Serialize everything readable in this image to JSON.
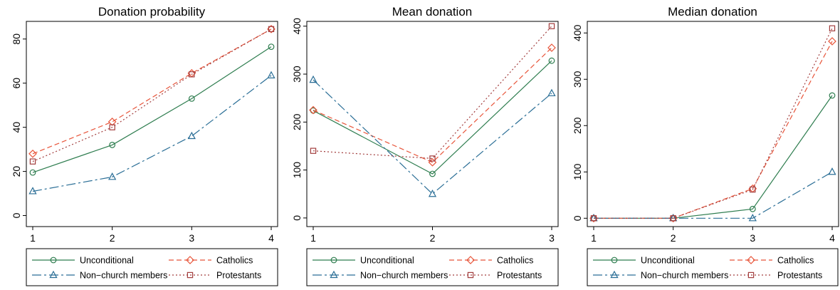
{
  "colors": {
    "unconditional": "#2E7D4F",
    "catholics": "#E8553A",
    "non_church": "#2A6E96",
    "protestants": "#A23D3D"
  },
  "legend_labels": {
    "unconditional": "Unconditional",
    "catholics": "Catholics",
    "non_church": "Non−church members",
    "protestants": "Protestants"
  },
  "chart_data": [
    {
      "type": "line",
      "title": "Donation probability",
      "x": [
        1,
        2,
        3,
        4
      ],
      "xticks": [
        "1",
        "2",
        "3",
        "4"
      ],
      "ylim": [
        -5,
        88
      ],
      "yticks": [
        0,
        20,
        40,
        60,
        80
      ],
      "legend_position": "bottom",
      "series": [
        {
          "key": "unconditional",
          "name": "Unconditional",
          "marker": "circle",
          "dash": "solid",
          "values": [
            19.5,
            32,
            53,
            76.5
          ]
        },
        {
          "key": "catholics",
          "name": "Catholics",
          "marker": "diamond",
          "dash": "dashed",
          "values": [
            28,
            42.5,
            64.5,
            84.5
          ]
        },
        {
          "key": "non_church",
          "name": "Non−church members",
          "marker": "triangle",
          "dash": "longdash",
          "values": [
            11,
            17.5,
            36,
            63.5
          ]
        },
        {
          "key": "protestants",
          "name": "Protestants",
          "marker": "square",
          "dash": "dotted",
          "values": [
            24.5,
            40,
            64,
            84.5
          ]
        }
      ]
    },
    {
      "type": "line",
      "title": "Mean donation",
      "x": [
        1,
        2,
        3
      ],
      "xticks": [
        "1",
        "2",
        "3"
      ],
      "ylim": [
        -18,
        410
      ],
      "yticks": [
        0,
        100,
        200,
        300,
        400
      ],
      "legend_position": "bottom",
      "series": [
        {
          "key": "unconditional",
          "name": "Unconditional",
          "marker": "circle",
          "dash": "solid",
          "values": [
            224,
            92,
            328
          ]
        },
        {
          "key": "catholics",
          "name": "Catholics",
          "marker": "diamond",
          "dash": "dashed",
          "values": [
            225,
            116,
            355
          ]
        },
        {
          "key": "non_church",
          "name": "Non−church members",
          "marker": "triangle",
          "dash": "longdash",
          "values": [
            288,
            50,
            260
          ]
        },
        {
          "key": "protestants",
          "name": "Protestants",
          "marker": "square",
          "dash": "dotted",
          "values": [
            140,
            124,
            400
          ]
        }
      ]
    },
    {
      "type": "line",
      "title": "Median donation",
      "x": [
        1,
        2,
        3,
        4
      ],
      "xticks": [
        "1",
        "2",
        "3",
        "4"
      ],
      "ylim": [
        -18,
        425
      ],
      "yticks": [
        0,
        100,
        200,
        300,
        400
      ],
      "legend_position": "bottom",
      "series": [
        {
          "key": "unconditional",
          "name": "Unconditional",
          "marker": "circle",
          "dash": "solid",
          "values": [
            0,
            0,
            20,
            265
          ]
        },
        {
          "key": "catholics",
          "name": "Catholics",
          "marker": "diamond",
          "dash": "dashed",
          "values": [
            0,
            0,
            64,
            382
          ]
        },
        {
          "key": "non_church",
          "name": "Non−church members",
          "marker": "triangle",
          "dash": "longdash",
          "values": [
            0,
            0,
            0,
            100
          ]
        },
        {
          "key": "protestants",
          "name": "Protestants",
          "marker": "square",
          "dash": "dotted",
          "values": [
            0,
            0,
            62,
            410
          ]
        }
      ]
    }
  ]
}
